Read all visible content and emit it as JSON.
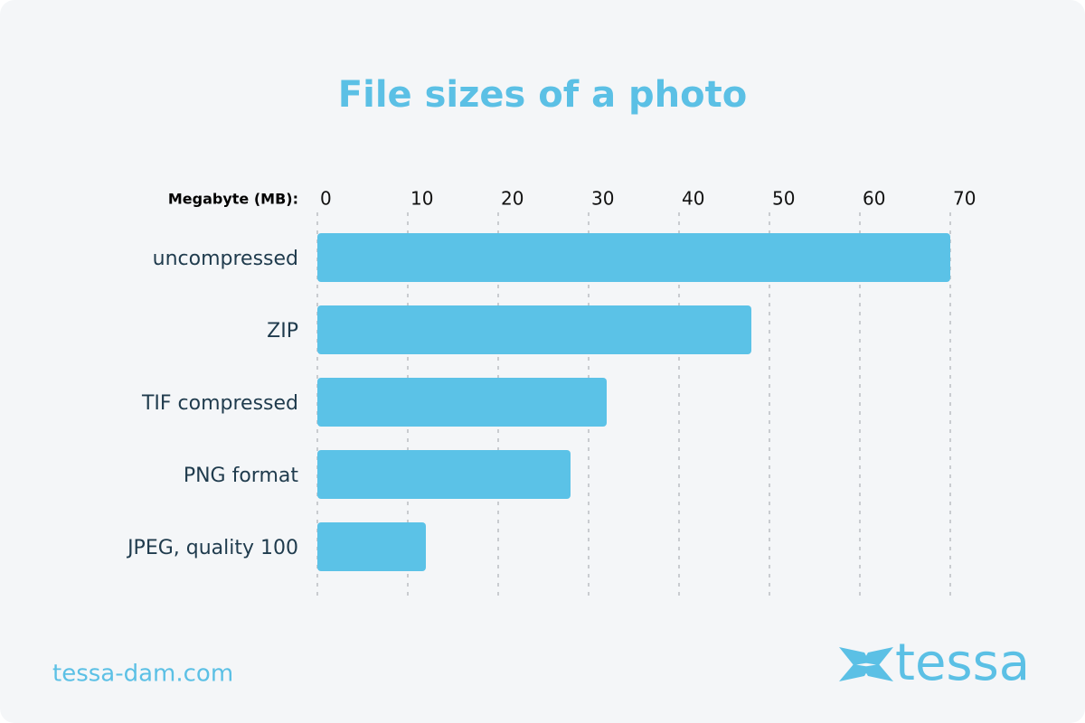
{
  "chart_data": {
    "type": "bar",
    "orientation": "horizontal",
    "title": "File sizes of a photo",
    "x_label": "Megabyte (MB):",
    "categories": [
      "uncompressed",
      "ZIP",
      "TIF compressed",
      "PNG format",
      "JPEG, quality 100"
    ],
    "values": [
      70,
      48,
      32,
      28,
      12
    ],
    "color": "#5bc2e7",
    "xlim": [
      0,
      70
    ],
    "xticks": [
      0,
      10,
      20,
      30,
      40,
      50,
      60,
      70
    ],
    "grid": true
  },
  "footer": {
    "website": "tessa-dam.com",
    "logo": "tessa"
  }
}
